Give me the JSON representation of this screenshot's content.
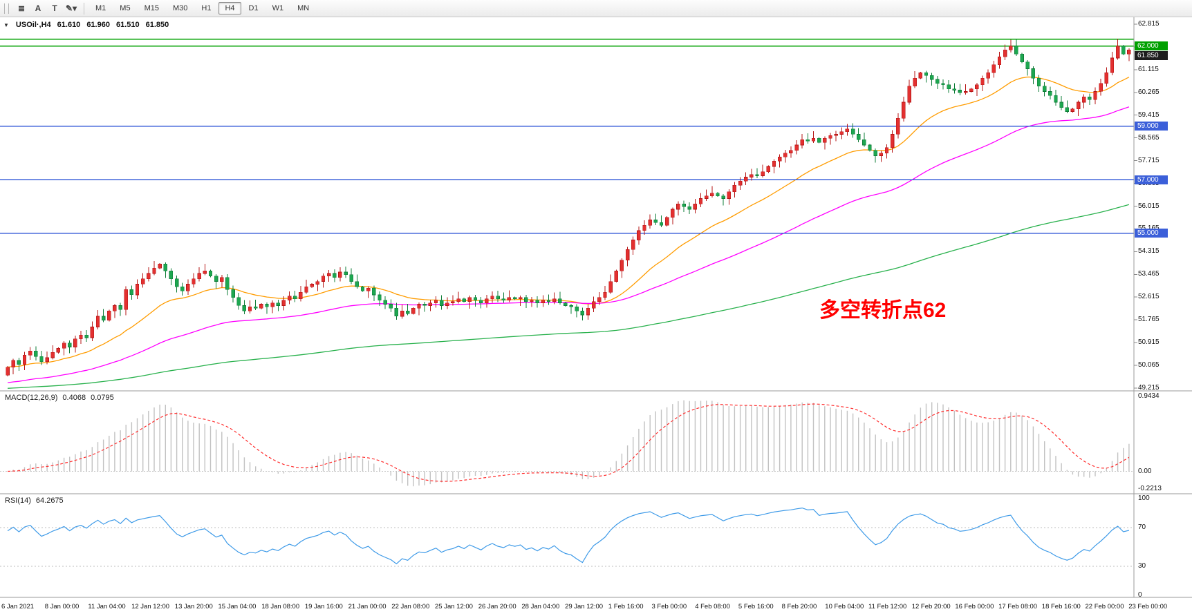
{
  "toolbar": {
    "tools": [
      {
        "name": "charts-list-icon",
        "glyph": "≣"
      },
      {
        "name": "annotation-a-icon",
        "glyph": "A"
      },
      {
        "name": "text-tool-icon",
        "glyph": "T"
      },
      {
        "name": "drawing-tools-dropdown-icon",
        "glyph": "✎▾"
      }
    ],
    "timeframes": [
      "M1",
      "M5",
      "M15",
      "M30",
      "H1",
      "H4",
      "D1",
      "W1",
      "MN"
    ],
    "active_timeframe": "H4"
  },
  "chart_header": {
    "collapse_arrow": "▼",
    "symbol": "USOil·,H4",
    "open": "61.610",
    "high": "61.960",
    "low": "61.510",
    "close": "61.850"
  },
  "annotation": {
    "text": "多空转折点62",
    "color": "#ff0000"
  },
  "price_axis": {
    "labels": [
      "62.815",
      "61.965",
      "61.115",
      "60.265",
      "59.415",
      "58.565",
      "57.715",
      "56.865",
      "56.015",
      "55.165",
      "54.315",
      "53.465",
      "52.615",
      "51.765",
      "50.915",
      "50.065",
      "49.215"
    ]
  },
  "hlines": [
    {
      "price": 62.25,
      "color": "#00a000"
    },
    {
      "price": 62.0,
      "color": "#00a000"
    },
    {
      "price": 59.0,
      "color": "#3b5fd9"
    },
    {
      "price": 57.0,
      "color": "#3b5fd9"
    },
    {
      "price": 55.0,
      "color": "#3b5fd9"
    }
  ],
  "badges": [
    {
      "name": "level-62-badge",
      "text": "62.000",
      "price": 62.0,
      "bg": "#00a000"
    },
    {
      "name": "last-price-badge",
      "text": "61.850",
      "price": 61.85,
      "bg": "#1e1e1e"
    },
    {
      "name": "level-59-badge",
      "text": "59.000",
      "price": 59.0,
      "bg": "#3b5fd9"
    },
    {
      "name": "level-57-badge",
      "text": "57.000",
      "price": 57.0,
      "bg": "#3b5fd9"
    },
    {
      "name": "level-55-badge",
      "text": "55.000",
      "price": 55.0,
      "bg": "#3b5fd9"
    }
  ],
  "macd_panel": {
    "label": "MACD(12,26,9)",
    "value1": "0.4068",
    "value2": "0.0795",
    "axis_labels": [
      "0.9434",
      "0.00",
      "-0.2213"
    ],
    "axis_values": [
      0.9434,
      0,
      -0.2213
    ]
  },
  "rsi_panel": {
    "label": "RSI(14)",
    "value": "64.2675",
    "axis_labels": [
      "100",
      "70",
      "30",
      "0"
    ],
    "axis_values": [
      100,
      70,
      30,
      0
    ]
  },
  "time_axis": {
    "labels": [
      "6 Jan 2021",
      "8 Jan 00:00",
      "11 Jan 04:00",
      "12 Jan 12:00",
      "13 Jan 20:00",
      "15 Jan 04:00",
      "18 Jan 08:00",
      "19 Jan 16:00",
      "21 Jan 00:00",
      "22 Jan 08:00",
      "25 Jan 12:00",
      "26 Jan 20:00",
      "28 Jan 04:00",
      "29 Jan 12:00",
      "1 Feb 16:00",
      "3 Feb 00:00",
      "4 Feb 08:00",
      "5 Feb 16:00",
      "8 Feb 20:00",
      "10 Feb 04:00",
      "11 Feb 12:00",
      "12 Feb 20:00",
      "16 Feb 00:00",
      "17 Feb 08:00",
      "18 Feb 16:00",
      "22 Feb 00:00",
      "23 Feb 00:00"
    ]
  },
  "chart_data": {
    "type": "candlestick",
    "symbol": "USOil",
    "timeframe": "H4",
    "title": "USOil H4 candlestick chart with MA overlays, MACD and RSI",
    "x_range": [
      "6 Jan 2021",
      "23 Feb 2021 00:00"
    ],
    "ylim": [
      49.215,
      62.815
    ],
    "levels": [
      55.0,
      57.0,
      59.0,
      62.0,
      62.25
    ],
    "up_color": "#e33030",
    "down_color": "#1da750",
    "first_open": 49.7,
    "closes": [
      50.0,
      50.25,
      50.1,
      50.45,
      50.6,
      50.4,
      50.2,
      50.35,
      50.55,
      50.7,
      50.9,
      50.75,
      51.05,
      51.2,
      51.1,
      51.5,
      51.9,
      51.75,
      52.1,
      52.3,
      52.15,
      52.9,
      52.7,
      53.1,
      53.3,
      53.5,
      53.7,
      53.85,
      53.6,
      53.3,
      53.0,
      52.85,
      53.1,
      53.3,
      53.5,
      53.6,
      53.4,
      53.2,
      53.35,
      52.9,
      52.6,
      52.3,
      52.1,
      52.25,
      52.2,
      52.35,
      52.25,
      52.4,
      52.3,
      52.5,
      52.65,
      52.55,
      52.8,
      53.0,
      53.1,
      53.2,
      53.4,
      53.5,
      53.35,
      53.55,
      53.45,
      53.2,
      53.0,
      52.85,
      52.95,
      52.7,
      52.5,
      52.35,
      52.2,
      51.9,
      52.1,
      52.0,
      52.2,
      52.35,
      52.3,
      52.4,
      52.5,
      52.3,
      52.4,
      52.45,
      52.55,
      52.45,
      52.6,
      52.5,
      52.4,
      52.55,
      52.65,
      52.55,
      52.5,
      52.6,
      52.55,
      52.6,
      52.45,
      52.5,
      52.4,
      52.5,
      52.45,
      52.55,
      52.4,
      52.3,
      52.25,
      52.1,
      51.95,
      52.2,
      52.45,
      52.6,
      52.8,
      53.2,
      53.6,
      54.0,
      54.4,
      54.75,
      55.1,
      55.3,
      55.5,
      55.4,
      55.3,
      55.6,
      55.9,
      56.1,
      56.0,
      55.9,
      56.1,
      56.3,
      56.4,
      56.5,
      56.4,
      56.3,
      56.55,
      56.8,
      56.95,
      57.1,
      57.2,
      57.15,
      57.3,
      57.5,
      57.7,
      57.85,
      58.0,
      58.1,
      58.3,
      58.5,
      58.45,
      58.55,
      58.4,
      58.55,
      58.65,
      58.7,
      58.8,
      58.9,
      58.7,
      58.5,
      58.3,
      58.1,
      57.9,
      58.0,
      58.2,
      58.7,
      59.3,
      59.9,
      60.5,
      60.8,
      61.0,
      60.9,
      60.75,
      60.6,
      60.55,
      60.4,
      60.35,
      60.25,
      60.3,
      60.4,
      60.55,
      60.8,
      61.0,
      61.3,
      61.6,
      61.85,
      62.0,
      61.7,
      61.4,
      61.15,
      60.8,
      60.5,
      60.3,
      60.15,
      59.9,
      59.7,
      59.55,
      59.65,
      59.9,
      60.1,
      60.0,
      60.3,
      60.6,
      61.0,
      61.55,
      62.0,
      61.7,
      61.85
    ],
    "overlays": [
      {
        "name": "ma-fast",
        "type": "ema",
        "period": 20,
        "seed": null,
        "color": "#ff9c00"
      },
      {
        "name": "ma-mid",
        "type": "ema",
        "period": 60,
        "seed": 49.4,
        "color": "#ff00ff"
      },
      {
        "name": "ma-slow",
        "type": "ema",
        "period": 200,
        "seed": 49.2,
        "color": "#28b14c"
      }
    ],
    "indicators": [
      {
        "type": "macd",
        "fast": 12,
        "slow": 26,
        "signal": 9,
        "display": "histogram+signal",
        "histogram_color": "#c2c2c2",
        "signal_color": "#ff2d2d",
        "last_values": [
          0.4068,
          0.0795
        ],
        "range": [
          -0.2213,
          0.9434
        ]
      },
      {
        "type": "rsi",
        "period": 14,
        "color": "#3d9ae8",
        "last_value": 64.2675,
        "levels": [
          30,
          70
        ],
        "range": [
          0,
          100
        ]
      }
    ]
  }
}
